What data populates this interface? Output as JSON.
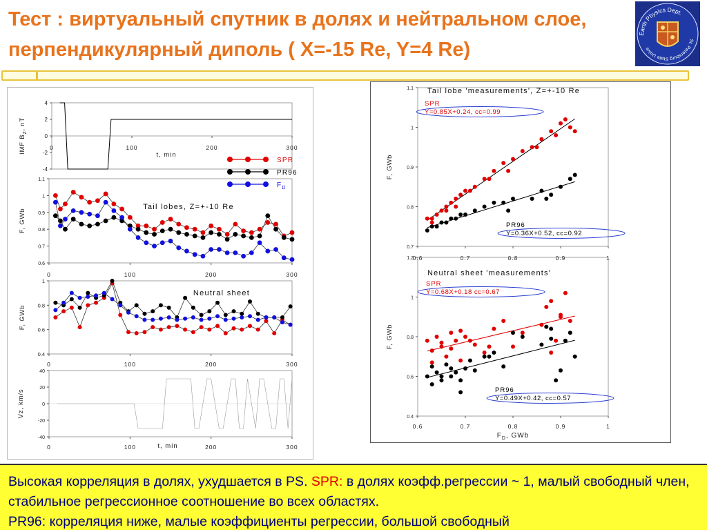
{
  "header": {
    "title": "Тест :  виртуальный спутник в долях и нейтральном слое, перпендикулярный диполь ( X=-15 Re, Y=4 Re)",
    "logo_text_top": "Earth Physics Dept.",
    "logo_text_side": "St. Petersburg State University"
  },
  "colors": {
    "title": "#e8731c",
    "spr": "#e00000",
    "pr96": "#000000",
    "fd": "#1010e0",
    "bottom_bg": "#ffff33",
    "bottom_text": "#00007a"
  },
  "chart_data": [
    {
      "id": "imf",
      "type": "line",
      "ylabel": "IMF B",
      "ylabel_sub": "Z",
      "ylabel_suffix": ", nT",
      "xlabel": "t, min",
      "xlim": [
        0,
        300
      ],
      "ylim": [
        -4,
        4
      ],
      "xticks": [
        "0",
        "100",
        "200",
        "300"
      ],
      "yticks": [
        "4",
        "2",
        "0",
        "-2",
        "-4"
      ],
      "series": [
        {
          "x": [
            10,
            16,
            20,
            70,
            74,
            300
          ],
          "y": [
            4,
            4,
            -4,
            -4,
            2,
            2
          ]
        }
      ]
    },
    {
      "id": "tail",
      "type": "scatter",
      "annotation": "Tail lobes, Z=+-10 Re",
      "ylabel": "F, GWb",
      "xlim": [
        0,
        300
      ],
      "ylim": [
        0.6,
        1.1
      ],
      "xticks": [
        "0",
        "100",
        "200",
        "300"
      ],
      "yticks": [
        "1.1",
        "1",
        "0.9",
        "0.8",
        "0.7",
        "0.6"
      ],
      "legend": [
        "SPR",
        "PR96",
        "F"
      ],
      "legend_sub": "D",
      "series": [
        {
          "name": "SPR",
          "x": [
            8,
            14,
            20,
            30,
            40,
            50,
            60,
            70,
            80,
            90,
            100,
            110,
            120,
            130,
            140,
            150,
            160,
            170,
            180,
            190,
            200,
            210,
            220,
            230,
            240,
            250,
            260,
            270,
            280,
            290,
            300
          ],
          "y": [
            1.0,
            0.92,
            0.95,
            1.02,
            0.99,
            0.96,
            0.97,
            1.01,
            0.95,
            0.92,
            0.87,
            0.82,
            0.82,
            0.8,
            0.84,
            0.86,
            0.83,
            0.81,
            0.8,
            0.78,
            0.82,
            0.8,
            0.77,
            0.83,
            0.79,
            0.78,
            0.8,
            0.84,
            0.83,
            0.76,
            0.78
          ]
        },
        {
          "name": "PR96",
          "x": [
            8,
            14,
            20,
            30,
            40,
            50,
            60,
            70,
            80,
            90,
            100,
            110,
            120,
            130,
            140,
            150,
            160,
            170,
            180,
            190,
            200,
            210,
            220,
            230,
            240,
            250,
            260,
            270,
            280,
            290,
            300
          ],
          "y": [
            0.88,
            0.85,
            0.8,
            0.86,
            0.83,
            0.82,
            0.83,
            0.85,
            0.87,
            0.85,
            0.82,
            0.8,
            0.78,
            0.77,
            0.79,
            0.8,
            0.78,
            0.77,
            0.76,
            0.75,
            0.78,
            0.77,
            0.74,
            0.77,
            0.76,
            0.75,
            0.76,
            0.88,
            0.8,
            0.75,
            0.74
          ]
        },
        {
          "name": "F",
          "x": [
            8,
            14,
            20,
            30,
            40,
            50,
            60,
            70,
            80,
            90,
            100,
            110,
            120,
            130,
            140,
            150,
            160,
            170,
            180,
            190,
            200,
            210,
            220,
            230,
            240,
            250,
            260,
            270,
            280,
            290,
            300
          ],
          "y": [
            0.96,
            0.82,
            0.86,
            0.91,
            0.9,
            0.89,
            0.88,
            0.96,
            0.91,
            0.87,
            0.8,
            0.75,
            0.72,
            0.7,
            0.72,
            0.73,
            0.69,
            0.67,
            0.65,
            0.64,
            0.68,
            0.68,
            0.66,
            0.66,
            0.64,
            0.66,
            0.72,
            0.67,
            0.68,
            0.63,
            0.62
          ]
        }
      ]
    },
    {
      "id": "neutral",
      "type": "scatter",
      "annotation": "Neutral sheet",
      "ylabel": "F, GWb",
      "xlim": [
        0,
        300
      ],
      "ylim": [
        0.4,
        1.0
      ],
      "xticks": [
        "0",
        "100",
        "200",
        "300"
      ],
      "yticks": [
        "1",
        "0.8",
        "0.6",
        "0.4"
      ],
      "series": [
        {
          "name": "SPR",
          "x": [
            8,
            18,
            28,
            38,
            48,
            58,
            68,
            78,
            88,
            98,
            108,
            118,
            128,
            138,
            148,
            158,
            168,
            178,
            188,
            198,
            208,
            218,
            228,
            238,
            248,
            258,
            268,
            278,
            288,
            298
          ],
          "y": [
            0.7,
            0.75,
            0.78,
            0.62,
            0.8,
            0.82,
            0.86,
            0.98,
            0.72,
            0.58,
            0.57,
            0.58,
            0.62,
            0.6,
            0.62,
            0.63,
            0.6,
            0.58,
            0.62,
            0.6,
            0.63,
            0.57,
            0.61,
            0.6,
            0.63,
            0.6,
            0.67,
            0.57,
            0.68,
            0.64
          ]
        },
        {
          "name": "PR96",
          "x": [
            8,
            18,
            28,
            38,
            48,
            58,
            68,
            78,
            88,
            98,
            108,
            118,
            128,
            138,
            148,
            158,
            168,
            178,
            188,
            198,
            208,
            218,
            228,
            238,
            248,
            258,
            268,
            278,
            288,
            298
          ],
          "y": [
            0.82,
            0.8,
            0.85,
            0.78,
            0.9,
            0.86,
            0.88,
            1.0,
            0.82,
            0.75,
            0.8,
            0.73,
            0.75,
            0.8,
            0.78,
            0.7,
            0.86,
            0.78,
            0.72,
            0.75,
            0.82,
            0.72,
            0.75,
            0.73,
            0.83,
            0.73,
            0.7,
            0.7,
            0.7,
            0.79
          ]
        },
        {
          "name": "F",
          "x": [
            8,
            18,
            28,
            38,
            48,
            58,
            68,
            78,
            88,
            98,
            108,
            118,
            128,
            138,
            148,
            158,
            168,
            178,
            188,
            198,
            208,
            218,
            228,
            238,
            248,
            258,
            268,
            278,
            288,
            298
          ],
          "y": [
            0.76,
            0.82,
            0.9,
            0.86,
            0.87,
            0.88,
            0.9,
            0.85,
            0.8,
            0.74,
            0.71,
            0.68,
            0.68,
            0.69,
            0.7,
            0.68,
            0.69,
            0.7,
            0.68,
            0.69,
            0.71,
            0.68,
            0.69,
            0.7,
            0.71,
            0.68,
            0.7,
            0.7,
            0.66,
            0.64
          ]
        }
      ]
    },
    {
      "id": "vz",
      "type": "line",
      "ylabel": "Vz, km/s",
      "xlabel": "t, min",
      "xlim": [
        0,
        300
      ],
      "ylim": [
        -40,
        40
      ],
      "xticks": [
        "0",
        "100",
        "200",
        "300"
      ],
      "yticks": [
        "40",
        "20",
        "0",
        "-20",
        "-40"
      ],
      "series": [
        {
          "x": [
            10,
            105,
            110,
            140,
            145,
            175,
            180,
            185,
            195,
            200,
            210,
            215,
            225,
            230,
            235,
            240,
            245,
            255,
            260,
            265,
            275,
            280,
            285,
            290,
            295,
            300
          ],
          "y": [
            0,
            0,
            -30,
            -30,
            30,
            30,
            -30,
            -30,
            30,
            30,
            -30,
            -30,
            30,
            30,
            -30,
            -30,
            30,
            -30,
            30,
            30,
            -30,
            -30,
            30,
            30,
            -30,
            30
          ]
        }
      ]
    },
    {
      "id": "scatter_tail",
      "type": "scatter",
      "title": "Tail lobe 'measurements', Z=+-10 Re",
      "ylabel": "F, GWb",
      "xlim": [
        0.6,
        1.0
      ],
      "ylim": [
        0.7,
        1.1
      ],
      "xticks": [
        "0.6",
        "0.7",
        "0.8",
        "0.9",
        "1"
      ],
      "yticks": [
        "1.1",
        "1",
        "0.9",
        "0.8",
        "0.7"
      ],
      "fit_spr": "Y=0.85X+0.24, cc=0.99",
      "fit_pr96": "Y=0.36X+0.52, cc=0.92",
      "series": [
        {
          "name": "SPR",
          "x": [
            0.62,
            0.63,
            0.64,
            0.65,
            0.66,
            0.67,
            0.68,
            0.69,
            0.7,
            0.72,
            0.74,
            0.76,
            0.78,
            0.8,
            0.82,
            0.84,
            0.86,
            0.88,
            0.9,
            0.92,
            0.63,
            0.66,
            0.68,
            0.71,
            0.75,
            0.79,
            0.85,
            0.89,
            0.91,
            0.93
          ],
          "y": [
            0.77,
            0.77,
            0.78,
            0.79,
            0.8,
            0.81,
            0.82,
            0.83,
            0.84,
            0.85,
            0.87,
            0.89,
            0.91,
            0.92,
            0.94,
            0.95,
            0.97,
            0.99,
            1.01,
            1.0,
            0.76,
            0.79,
            0.8,
            0.84,
            0.87,
            0.89,
            0.95,
            0.98,
            1.02,
            0.99
          ]
        },
        {
          "name": "PR96",
          "x": [
            0.62,
            0.63,
            0.64,
            0.65,
            0.66,
            0.67,
            0.68,
            0.69,
            0.7,
            0.72,
            0.74,
            0.76,
            0.78,
            0.8,
            0.84,
            0.86,
            0.87,
            0.88,
            0.9,
            0.92,
            0.93,
            0.79
          ],
          "y": [
            0.74,
            0.75,
            0.75,
            0.76,
            0.76,
            0.77,
            0.77,
            0.78,
            0.78,
            0.79,
            0.8,
            0.81,
            0.81,
            0.82,
            0.82,
            0.84,
            0.82,
            0.83,
            0.85,
            0.87,
            0.88,
            0.79
          ]
        }
      ]
    },
    {
      "id": "scatter_neutral",
      "type": "scatter",
      "title": "Neutral sheet 'measurements'",
      "ylabel": "F, GWb",
      "xlabel": "F",
      "xlabel_sub": "D",
      "xlabel_suffix": ", GWb",
      "xlim": [
        0.6,
        1.0
      ],
      "ylim": [
        0.4,
        1.2
      ],
      "xticks": [
        "0.6",
        "0.7",
        "0.8",
        "0.9",
        "1"
      ],
      "yticks": [
        "1.2",
        "1",
        "0.8",
        "0.6",
        "0.4"
      ],
      "fit_spr": "Y=0.68X+0.18 cc=0.67",
      "fit_pr96": "Y=0.49X+0.42, cc=0.57",
      "series": [
        {
          "name": "SPR",
          "x": [
            0.62,
            0.63,
            0.64,
            0.65,
            0.66,
            0.67,
            0.68,
            0.69,
            0.7,
            0.72,
            0.74,
            0.76,
            0.78,
            0.8,
            0.82,
            0.86,
            0.87,
            0.88,
            0.89,
            0.9,
            0.91,
            0.92,
            0.63,
            0.65,
            0.67,
            0.69,
            0.71,
            0.75,
            0.88,
            0.9
          ],
          "y": [
            0.78,
            0.73,
            0.8,
            0.75,
            0.7,
            0.82,
            0.78,
            0.68,
            0.8,
            0.76,
            0.72,
            0.84,
            0.88,
            0.75,
            0.82,
            0.86,
            0.95,
            0.98,
            0.78,
            0.9,
            1.02,
            0.88,
            0.67,
            0.77,
            0.74,
            0.83,
            0.78,
            0.75,
            0.72,
            0.91
          ]
        },
        {
          "name": "PR96",
          "x": [
            0.62,
            0.63,
            0.64,
            0.65,
            0.66,
            0.67,
            0.68,
            0.69,
            0.7,
            0.72,
            0.74,
            0.76,
            0.78,
            0.8,
            0.82,
            0.86,
            0.87,
            0.88,
            0.89,
            0.9,
            0.91,
            0.92,
            0.63,
            0.65,
            0.67,
            0.69,
            0.71,
            0.75,
            0.88,
            0.93
          ],
          "y": [
            0.6,
            0.65,
            0.62,
            0.58,
            0.66,
            0.6,
            0.62,
            0.52,
            0.64,
            0.63,
            0.7,
            0.72,
            0.65,
            0.82,
            0.8,
            0.76,
            0.85,
            0.79,
            0.58,
            0.63,
            0.78,
            0.82,
            0.56,
            0.6,
            0.64,
            0.58,
            0.68,
            0.7,
            0.84,
            0.7
          ]
        }
      ]
    }
  ],
  "bottom": {
    "part1": "Высокая корреляция в долях, ухудшается в PS. ",
    "spr": "SPR:",
    "part2": " в долях коэфф.регрессии ~ 1, малый свободный член, стабильное регрессионное соотношение во всех областях.",
    "pr96": "PR96",
    "part3": ": корреляция ниже, малые коэффициенты регрессии, большой свободный"
  }
}
